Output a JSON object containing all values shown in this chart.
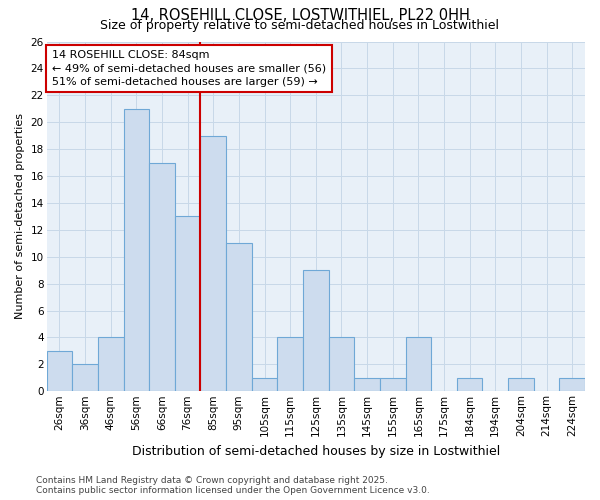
{
  "title": "14, ROSEHILL CLOSE, LOSTWITHIEL, PL22 0HH",
  "subtitle": "Size of property relative to semi-detached houses in Lostwithiel",
  "xlabel": "Distribution of semi-detached houses by size in Lostwithiel",
  "ylabel": "Number of semi-detached properties",
  "categories": [
    "26sqm",
    "36sqm",
    "46sqm",
    "56sqm",
    "66sqm",
    "76sqm",
    "85sqm",
    "95sqm",
    "105sqm",
    "115sqm",
    "125sqm",
    "135sqm",
    "145sqm",
    "155sqm",
    "165sqm",
    "175sqm",
    "184sqm",
    "194sqm",
    "204sqm",
    "214sqm",
    "224sqm"
  ],
  "values": [
    3,
    2,
    4,
    21,
    17,
    13,
    19,
    11,
    1,
    4,
    9,
    4,
    1,
    1,
    4,
    0,
    1,
    0,
    1,
    0,
    1
  ],
  "bar_color": "#cddcee",
  "bar_edge_color": "#6fa8d6",
  "highlight_index": 6,
  "highlight_line_color": "#cc0000",
  "annotation_line1": "14 ROSEHILL CLOSE: 84sqm",
  "annotation_line2": "← 49% of semi-detached houses are smaller (56)",
  "annotation_line3": "51% of semi-detached houses are larger (59) →",
  "annotation_box_color": "#ffffff",
  "annotation_box_edge_color": "#cc0000",
  "ylim": [
    0,
    26
  ],
  "yticks": [
    0,
    2,
    4,
    6,
    8,
    10,
    12,
    14,
    16,
    18,
    20,
    22,
    24,
    26
  ],
  "grid_color": "#c8d8e8",
  "background_color": "#ffffff",
  "plot_bg_color": "#e8f0f8",
  "footer_text": "Contains HM Land Registry data © Crown copyright and database right 2025.\nContains public sector information licensed under the Open Government Licence v3.0.",
  "title_fontsize": 10.5,
  "subtitle_fontsize": 9,
  "annotation_fontsize": 8,
  "footer_fontsize": 6.5,
  "ylabel_fontsize": 8,
  "xlabel_fontsize": 9,
  "tick_fontsize": 7.5
}
